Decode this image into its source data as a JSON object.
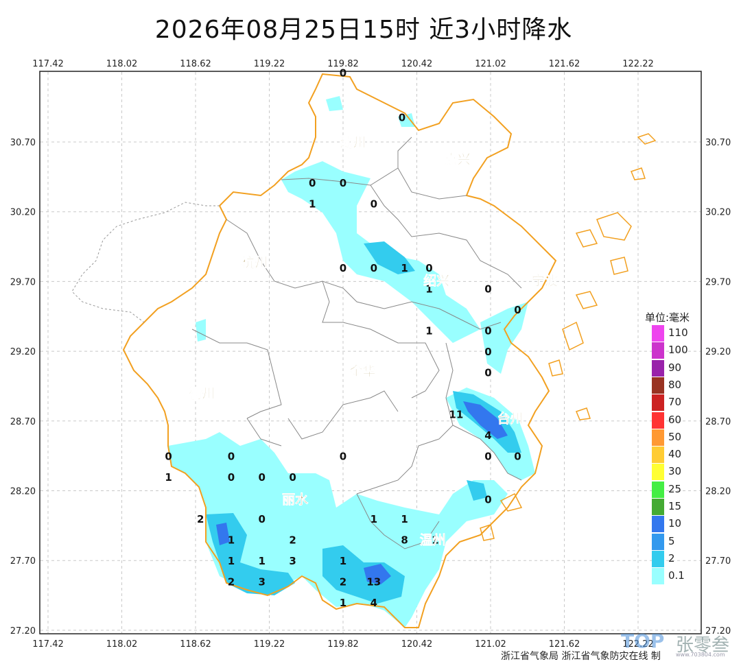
{
  "title": "2026年08月25日15时  近3小时降水",
  "lon_ticks": [
    "117.42",
    "118.02",
    "118.62",
    "119.22",
    "119.82",
    "120.42",
    "121.02",
    "121.62",
    "122.22"
  ],
  "lat_ticks": [
    "30.70",
    "30.20",
    "29.70",
    "29.20",
    "28.70",
    "28.20",
    "27.70",
    "27.20"
  ],
  "cities": [
    {
      "name": "湖州",
      "lon": 119.9,
      "lat": 30.7
    },
    {
      "name": "嘉兴",
      "lon": 120.75,
      "lat": 30.58
    },
    {
      "name": "杭州",
      "lon": 119.1,
      "lat": 29.84
    },
    {
      "name": "绍兴",
      "lon": 120.58,
      "lat": 29.71
    },
    {
      "name": "宁波",
      "lon": 121.46,
      "lat": 29.71
    },
    {
      "name": "金华",
      "lon": 119.98,
      "lat": 29.06
    },
    {
      "name": "衢州",
      "lon": 118.67,
      "lat": 28.9
    },
    {
      "name": "台州",
      "lon": 121.18,
      "lat": 28.72
    },
    {
      "name": "丽水",
      "lon": 119.43,
      "lat": 28.14
    },
    {
      "name": "温州",
      "lon": 120.55,
      "lat": 27.85
    }
  ],
  "stations": [
    {
      "v": "0",
      "lon": 119.82,
      "lat": 31.2
    },
    {
      "v": "0",
      "lon": 120.3,
      "lat": 30.88
    },
    {
      "v": "0",
      "lon": 119.57,
      "lat": 30.41
    },
    {
      "v": "0",
      "lon": 119.82,
      "lat": 30.41
    },
    {
      "v": "1",
      "lon": 119.57,
      "lat": 30.26
    },
    {
      "v": "0",
      "lon": 120.07,
      "lat": 30.26
    },
    {
      "v": "0",
      "lon": 119.82,
      "lat": 29.8
    },
    {
      "v": "0",
      "lon": 120.07,
      "lat": 29.8
    },
    {
      "v": "1",
      "lon": 120.32,
      "lat": 29.8
    },
    {
      "v": "0",
      "lon": 120.52,
      "lat": 29.8
    },
    {
      "v": "1",
      "lon": 120.52,
      "lat": 29.65
    },
    {
      "v": "0",
      "lon": 121.0,
      "lat": 29.65
    },
    {
      "v": "0",
      "lon": 121.24,
      "lat": 29.5
    },
    {
      "v": "1",
      "lon": 120.52,
      "lat": 29.35
    },
    {
      "v": "0",
      "lon": 121.0,
      "lat": 29.35
    },
    {
      "v": "0",
      "lon": 121.0,
      "lat": 29.2
    },
    {
      "v": "0",
      "lon": 121.0,
      "lat": 29.05
    },
    {
      "v": "11",
      "lon": 120.74,
      "lat": 28.75
    },
    {
      "v": "4",
      "lon": 121.0,
      "lat": 28.6
    },
    {
      "v": "0",
      "lon": 121.0,
      "lat": 28.45
    },
    {
      "v": "0",
      "lon": 121.24,
      "lat": 28.45
    },
    {
      "v": "0",
      "lon": 118.4,
      "lat": 28.45
    },
    {
      "v": "0",
      "lon": 118.91,
      "lat": 28.45
    },
    {
      "v": "0",
      "lon": 119.82,
      "lat": 28.45
    },
    {
      "v": "1",
      "lon": 118.4,
      "lat": 28.3
    },
    {
      "v": "0",
      "lon": 118.91,
      "lat": 28.3
    },
    {
      "v": "0",
      "lon": 119.16,
      "lat": 28.3
    },
    {
      "v": "0",
      "lon": 119.41,
      "lat": 28.3
    },
    {
      "v": "0",
      "lon": 121.0,
      "lat": 28.14
    },
    {
      "v": "2",
      "lon": 118.66,
      "lat": 28.0
    },
    {
      "v": "0",
      "lon": 119.16,
      "lat": 28.0
    },
    {
      "v": "1",
      "lon": 120.07,
      "lat": 28.0
    },
    {
      "v": "1",
      "lon": 120.32,
      "lat": 28.0
    },
    {
      "v": "1",
      "lon": 118.91,
      "lat": 27.85
    },
    {
      "v": "2",
      "lon": 119.41,
      "lat": 27.85
    },
    {
      "v": "8",
      "lon": 120.32,
      "lat": 27.85
    },
    {
      "v": "1",
      "lon": 120.57,
      "lat": 27.85
    },
    {
      "v": "1",
      "lon": 118.91,
      "lat": 27.7
    },
    {
      "v": "1",
      "lon": 119.16,
      "lat": 27.7
    },
    {
      "v": "3",
      "lon": 119.41,
      "lat": 27.7
    },
    {
      "v": "1",
      "lon": 119.82,
      "lat": 27.7
    },
    {
      "v": "2",
      "lon": 118.91,
      "lat": 27.55
    },
    {
      "v": "3",
      "lon": 119.16,
      "lat": 27.55
    },
    {
      "v": "2",
      "lon": 119.82,
      "lat": 27.55
    },
    {
      "v": "13",
      "lon": 120.07,
      "lat": 27.55
    },
    {
      "v": "1",
      "lon": 119.82,
      "lat": 27.4
    },
    {
      "v": "4",
      "lon": 120.07,
      "lat": 27.4
    }
  ],
  "legend": {
    "title": "单位:毫米",
    "entries": [
      {
        "label": "110",
        "color": "#ee44ee"
      },
      {
        "label": "100",
        "color": "#cc33cc"
      },
      {
        "label": "90",
        "color": "#9922aa"
      },
      {
        "label": "80",
        "color": "#993322"
      },
      {
        "label": "70",
        "color": "#cc2222"
      },
      {
        "label": "60",
        "color": "#ff3333"
      },
      {
        "label": "50",
        "color": "#ff9933"
      },
      {
        "label": "40",
        "color": "#ffcc33"
      },
      {
        "label": "30",
        "color": "#ffff33"
      },
      {
        "label": "25",
        "color": "#44ee44"
      },
      {
        "label": "15",
        "color": "#44aa33"
      },
      {
        "label": "10",
        "color": "#3377ee"
      },
      {
        "label": "5",
        "color": "#3399ee"
      },
      {
        "label": "2",
        "color": "#33ccee"
      },
      {
        "label": "0.1",
        "color": "#99ffff"
      }
    ]
  },
  "footer": "浙江省气象局  浙江省气象防灾在线  制",
  "watermark": {
    "logo": "TOP",
    "text": "张零叁",
    "url": "www.703804.com"
  },
  "colors": {
    "boundary": "#f2a020",
    "inner_boundary": "#888888",
    "grid": "#c8c8c8",
    "city_text": "#8b6914"
  }
}
